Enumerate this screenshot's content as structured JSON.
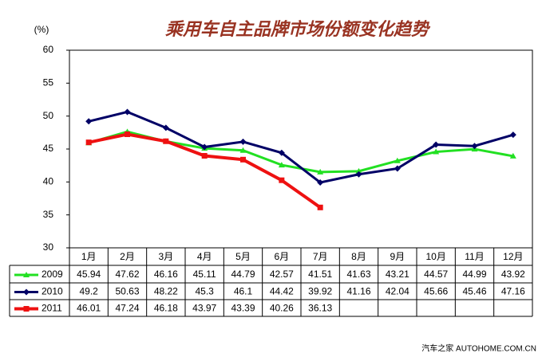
{
  "chart_data": {
    "type": "line",
    "title": "乘用车自主品牌市场份额变化趋势",
    "y_unit": "(%)",
    "categories": [
      "1月",
      "2月",
      "3月",
      "4月",
      "5月",
      "6月",
      "7月",
      "8月",
      "9月",
      "10月",
      "11月",
      "12月"
    ],
    "series": [
      {
        "name": "2009",
        "color": "#22e022",
        "marker": "triangle",
        "values": [
          45.94,
          47.62,
          46.16,
          45.11,
          44.79,
          42.57,
          41.51,
          41.63,
          43.21,
          44.57,
          44.99,
          43.92
        ]
      },
      {
        "name": "2010",
        "color": "#000066",
        "marker": "diamond",
        "values": [
          49.2,
          50.63,
          48.22,
          45.3,
          46.1,
          44.42,
          39.92,
          41.16,
          42.04,
          45.66,
          45.46,
          47.16
        ]
      },
      {
        "name": "2011",
        "color": "#ee1111",
        "marker": "square",
        "values": [
          46.01,
          47.24,
          46.18,
          43.97,
          43.39,
          40.26,
          36.13,
          null,
          null,
          null,
          null,
          null
        ]
      }
    ],
    "ylim": [
      30,
      60
    ],
    "yticks": [
      30,
      35,
      40,
      45,
      50,
      55,
      60
    ],
    "grid": false,
    "watermark": "汽车之家 AUTOHOME.COM.CN"
  }
}
